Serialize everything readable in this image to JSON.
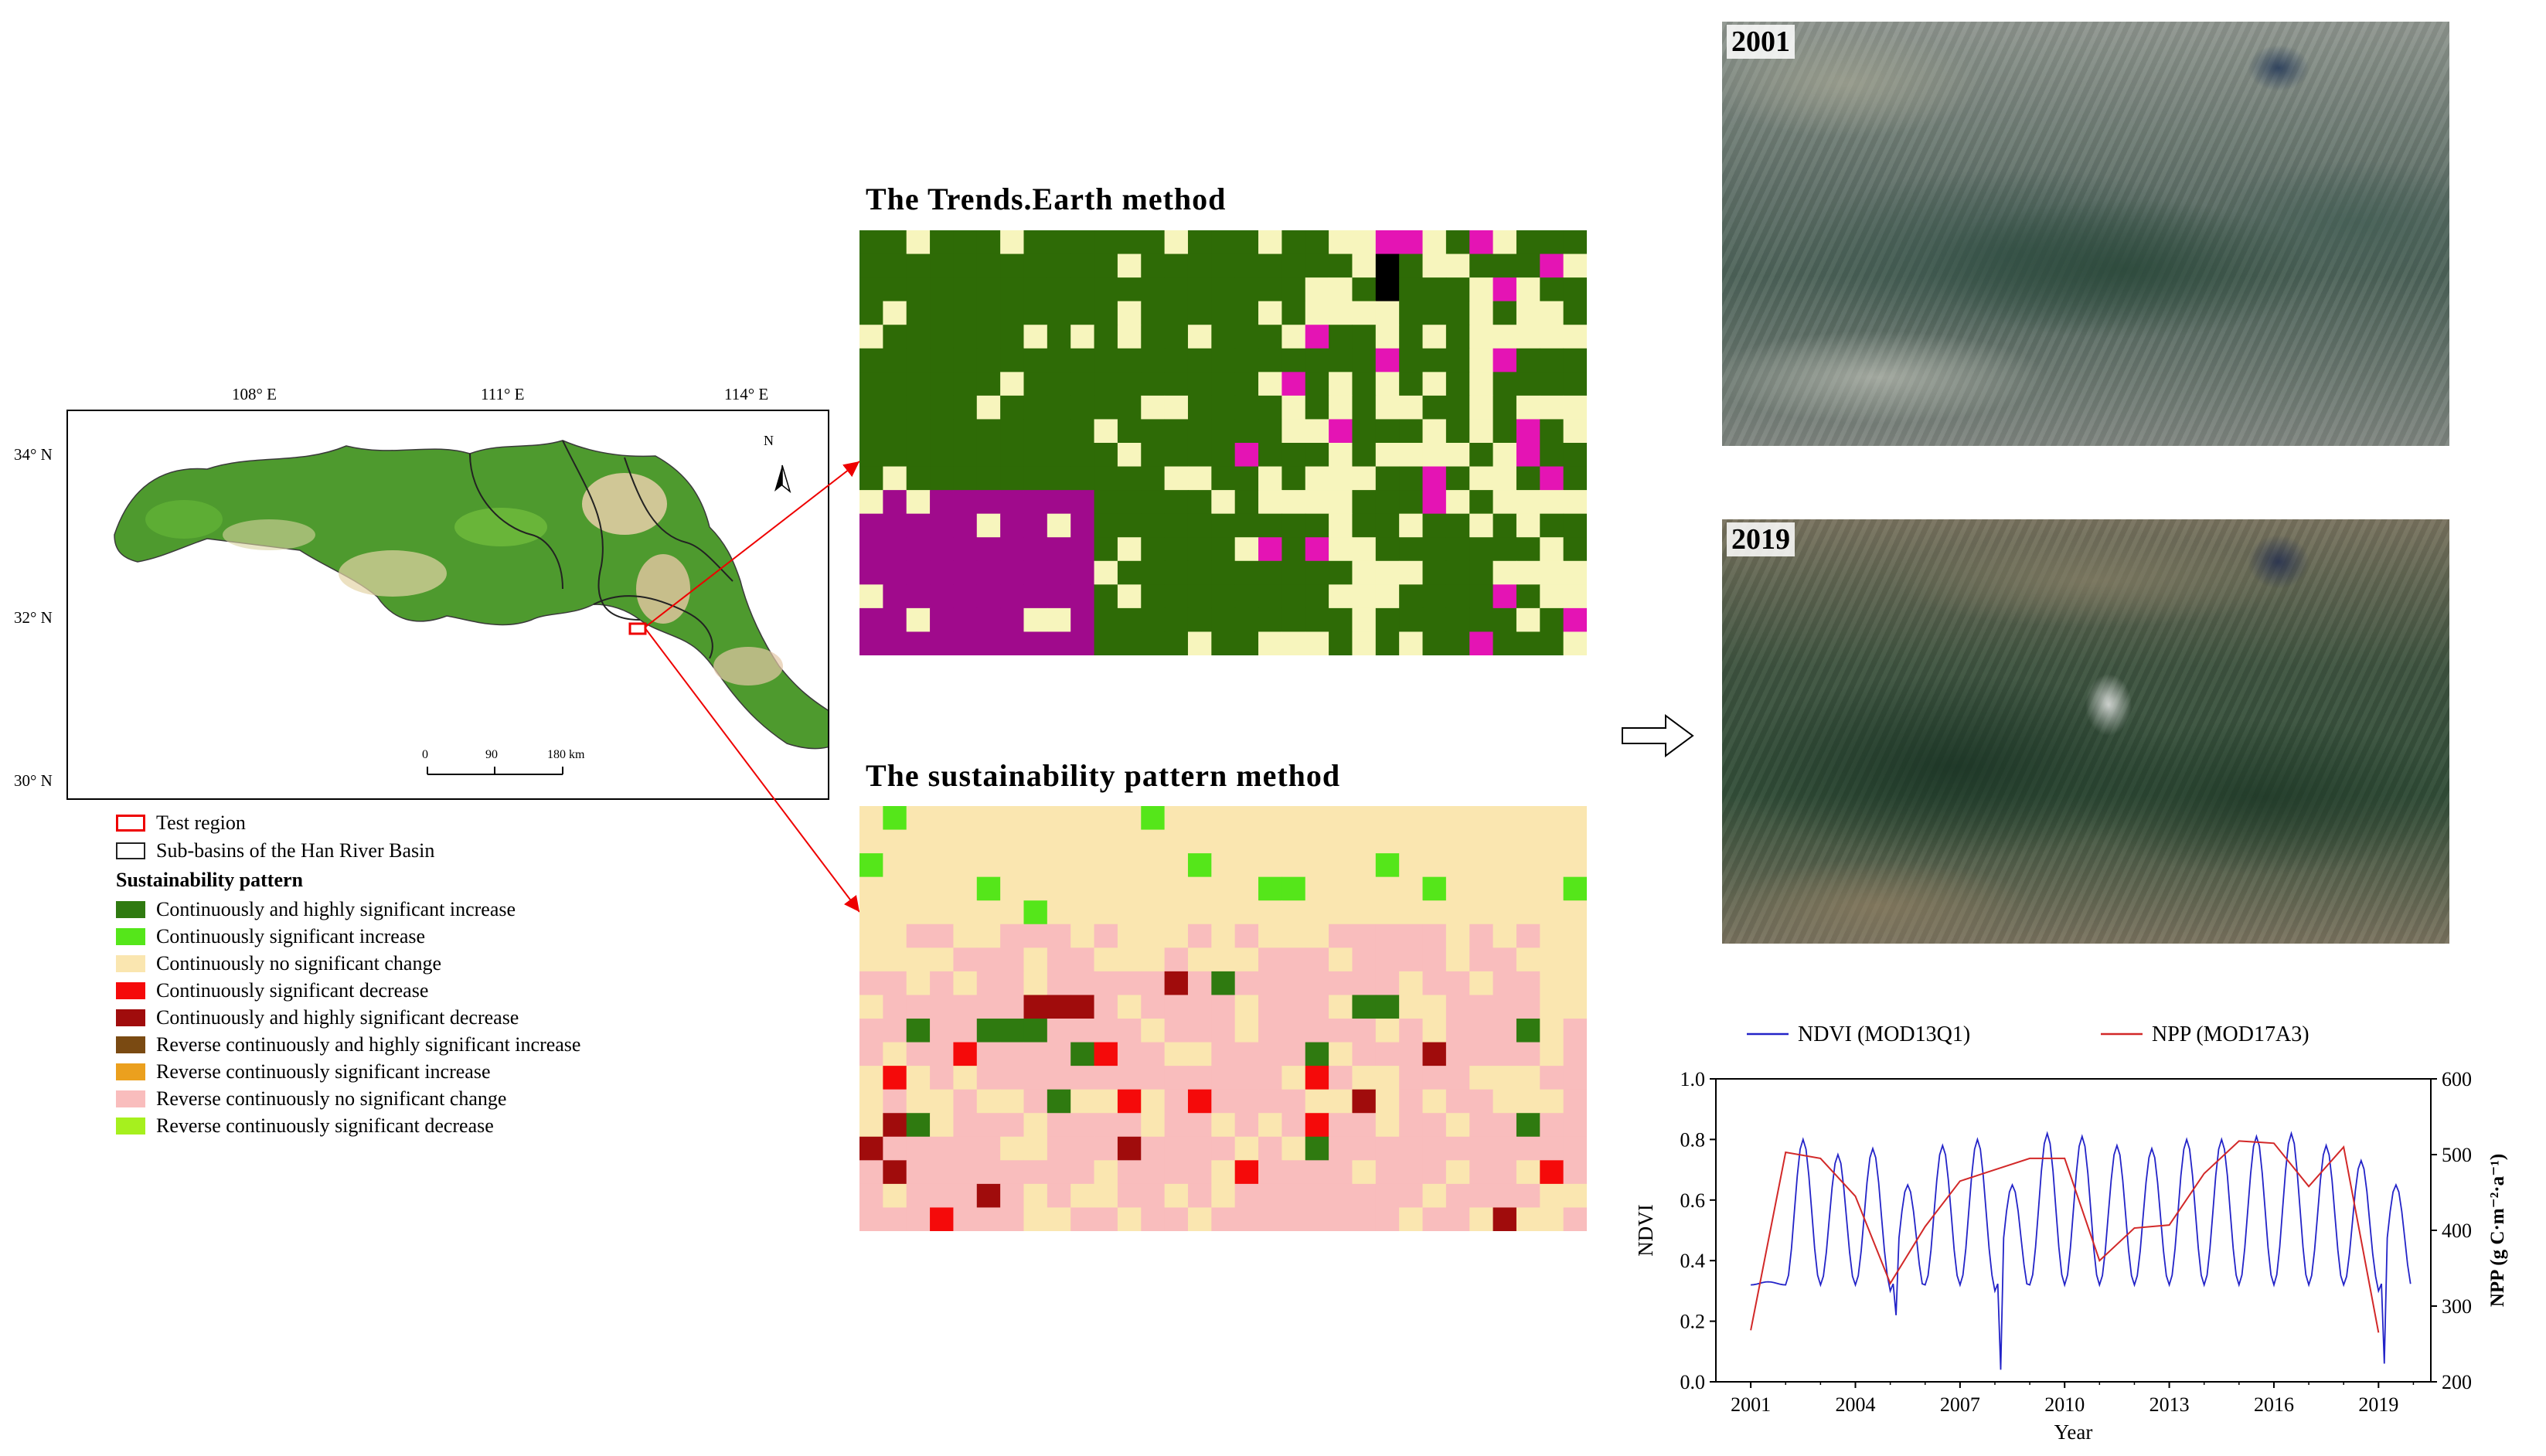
{
  "map": {
    "lon_labels": [
      "108° E",
      "111° E",
      "114° E"
    ],
    "lat_labels": [
      "34° N",
      "32° N",
      "30° N"
    ],
    "north_label": "N",
    "scale_labels": [
      "0",
      "90",
      "180 km"
    ]
  },
  "legend": {
    "test_region": "Test region",
    "sub_basins": "Sub-basins of the Han River Basin",
    "heading": "Sustainability pattern",
    "items": [
      {
        "label": "Continuously and highly significant increase",
        "color": "#2f7a10"
      },
      {
        "label": "Continuously significant increase",
        "color": "#55e61a"
      },
      {
        "label": "Continuously no significant change",
        "color": "#fae6b0"
      },
      {
        "label": "Continuously significant decrease",
        "color": "#f50a0a"
      },
      {
        "label": "Continuously and highly significant decrease",
        "color": "#a00c0c"
      },
      {
        "label": "Reverse continuously and highly significant increase",
        "color": "#7a4a12"
      },
      {
        "label": "Reverse continuously significant increase",
        "color": "#eba01e"
      },
      {
        "label": "Reverse continuously no significant change",
        "color": "#f9bdbd"
      },
      {
        "label": "Reverse continuously significant decrease",
        "color": "#a6f01e"
      }
    ]
  },
  "panels": {
    "trends_title": "The Trends.Earth method",
    "sustain_title": "The sustainability pattern method"
  },
  "imagery": {
    "year_top": "2001",
    "year_bottom": "2019"
  },
  "chart_data": {
    "type": "line",
    "x": [
      2001,
      2002,
      2003,
      2004,
      2005,
      2006,
      2007,
      2008,
      2009,
      2010,
      2011,
      2012,
      2013,
      2014,
      2015,
      2016,
      2017,
      2018,
      2019
    ],
    "xlabel": "Year",
    "ylabel": "NDVI",
    "y2label": "NPP (g C·m⁻²·a⁻¹)",
    "xticks": [
      "2001",
      "2004",
      "2007",
      "2010",
      "2013",
      "2016",
      "2019"
    ],
    "yticks": [
      "0.0",
      "0.2",
      "0.4",
      "0.6",
      "0.8",
      "1.0"
    ],
    "y2ticks": [
      "200",
      "300",
      "400",
      "500",
      "600"
    ],
    "ylim": [
      0,
      1
    ],
    "y2lim": [
      200,
      600
    ],
    "xlim": [
      2000,
      2020.5
    ],
    "legend_position": "top",
    "series": [
      {
        "name": "NDVI (MOD13Q1)",
        "color": "#2323c8",
        "axis": "left",
        "values": [
          0.33,
          0.8,
          0.75,
          0.77,
          0.22,
          0.78,
          0.8,
          0.04,
          0.82,
          0.81,
          0.78,
          0.77,
          0.8,
          0.8,
          0.81,
          0.82,
          0.78,
          0.73,
          0.06
        ]
      },
      {
        "name": "NPP (MOD17A3)",
        "color": "#d22828",
        "axis": "right",
        "values": [
          268,
          503,
          495,
          445,
          330,
          405,
          465,
          480,
          495,
          495,
          360,
          403,
          407,
          475,
          518,
          515,
          458,
          510,
          265
        ]
      }
    ]
  }
}
